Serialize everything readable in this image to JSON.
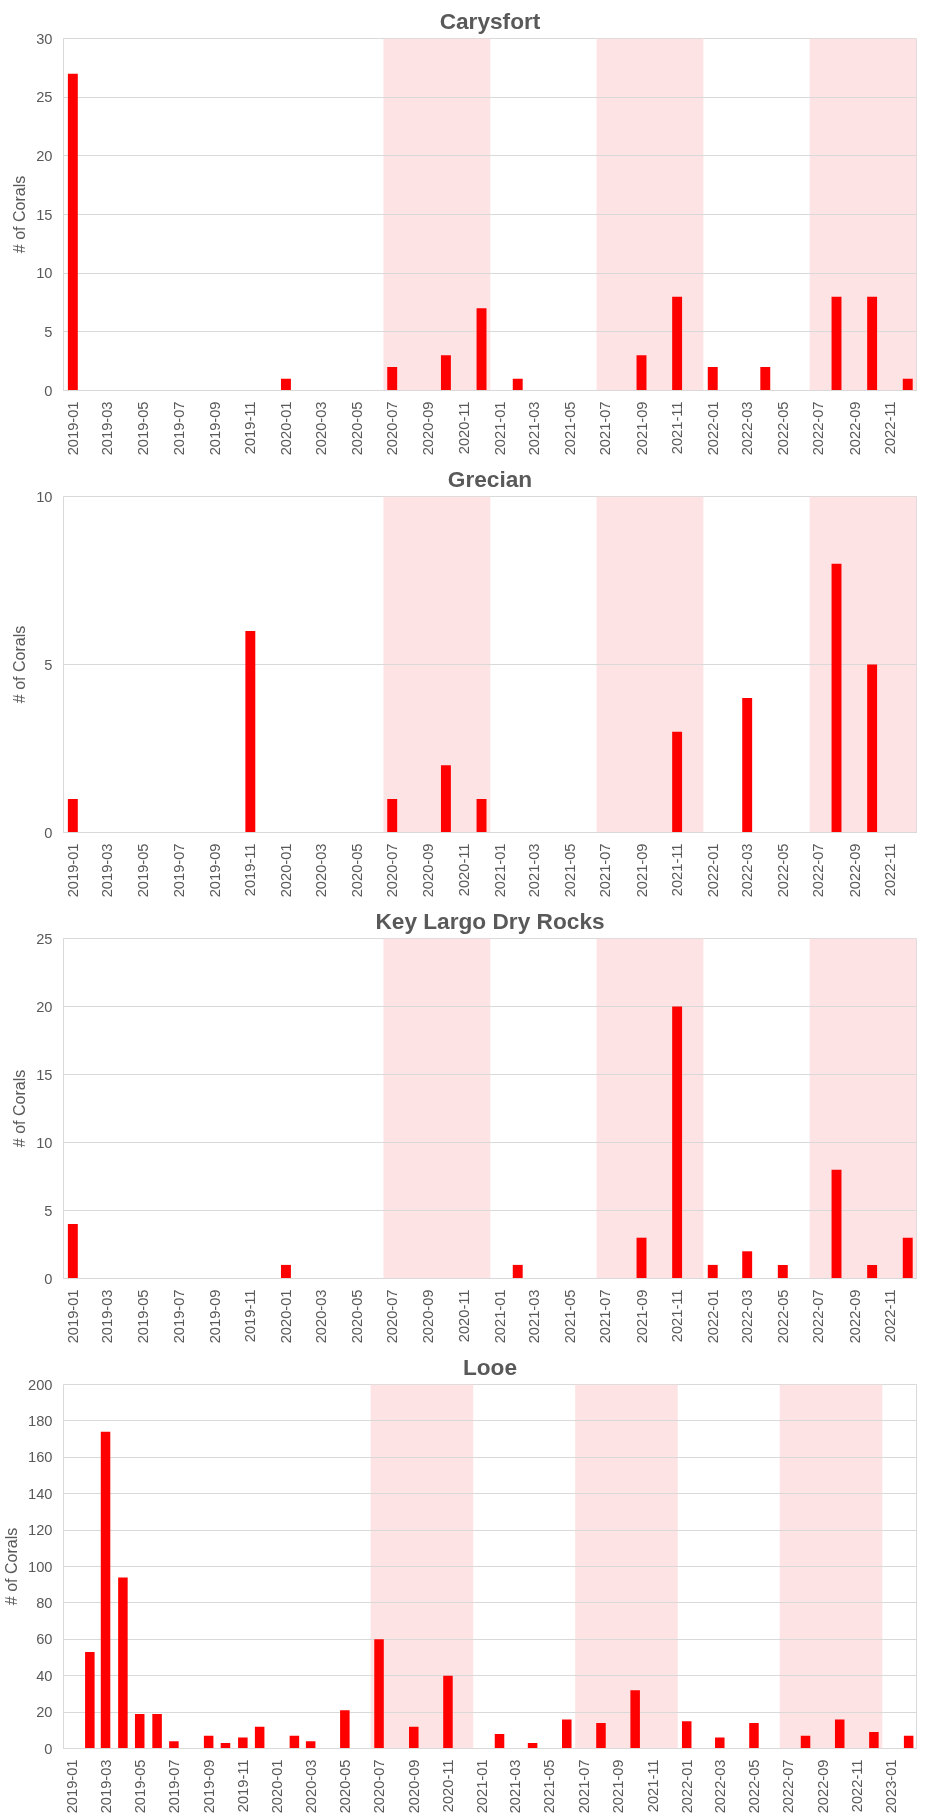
{
  "chart_data": [
    {
      "type": "bar",
      "title": "Carysfort",
      "ylabel": "# of Corals",
      "color": "#ff0000",
      "grid": "y",
      "x": [
        "2019-01",
        "2019-02",
        "2019-03",
        "2019-04",
        "2019-05",
        "2019-06",
        "2019-07",
        "2019-08",
        "2019-09",
        "2019-10",
        "2019-11",
        "2019-12",
        "2020-01",
        "2020-02",
        "2020-03",
        "2020-04",
        "2020-05",
        "2020-06",
        "2020-07",
        "2020-08",
        "2020-09",
        "2020-10",
        "2020-11",
        "2020-12",
        "2021-01",
        "2021-02",
        "2021-03",
        "2021-04",
        "2021-05",
        "2021-06",
        "2021-07",
        "2021-08",
        "2021-09",
        "2021-10",
        "2021-11",
        "2021-12",
        "2022-01",
        "2022-02",
        "2022-03",
        "2022-04",
        "2022-05",
        "2022-06",
        "2022-07",
        "2022-08",
        "2022-09",
        "2022-10",
        "2022-11",
        "2022-12"
      ],
      "values": [
        27,
        0,
        0,
        0,
        0,
        0,
        0,
        0,
        0,
        0,
        0,
        0,
        1,
        0,
        0,
        0,
        0,
        0,
        2,
        0,
        0,
        3,
        0,
        7,
        0,
        1,
        0,
        0,
        0,
        0,
        0,
        0,
        3,
        0,
        8,
        0,
        2,
        0,
        0,
        2,
        0,
        0,
        0,
        8,
        0,
        8,
        0,
        1
      ],
      "xlim": [
        "2018-12-16",
        "2022-12-16"
      ],
      "xticks": [
        "2019-01",
        "2019-03",
        "2019-05",
        "2019-07",
        "2019-09",
        "2019-11",
        "2020-01",
        "2020-03",
        "2020-05",
        "2020-07",
        "2020-09",
        "2020-11",
        "2021-01",
        "2021-03",
        "2021-05",
        "2021-07",
        "2021-09",
        "2021-11",
        "2022-01",
        "2022-03",
        "2022-05",
        "2022-07",
        "2022-09",
        "2022-11"
      ],
      "ylim": [
        0,
        30
      ],
      "yticks": [
        0,
        5,
        10,
        15,
        20,
        25,
        30
      ],
      "bands": [
        {
          "axis": "x",
          "from": "2020-06-16",
          "to": "2020-12-16",
          "color": "#fde3e4"
        },
        {
          "axis": "x",
          "from": "2021-06-16",
          "to": "2021-12-16",
          "color": "#fde3e4"
        },
        {
          "axis": "x",
          "from": "2022-06-16",
          "to": "2022-12-16",
          "color": "#fde3e4"
        }
      ]
    },
    {
      "type": "bar",
      "title": "Grecian",
      "ylabel": "# of Corals",
      "color": "#ff0000",
      "grid": "y",
      "x": [
        "2019-01",
        "2019-02",
        "2019-03",
        "2019-04",
        "2019-05",
        "2019-06",
        "2019-07",
        "2019-08",
        "2019-09",
        "2019-10",
        "2019-11",
        "2019-12",
        "2020-01",
        "2020-02",
        "2020-03",
        "2020-04",
        "2020-05",
        "2020-06",
        "2020-07",
        "2020-08",
        "2020-09",
        "2020-10",
        "2020-11",
        "2020-12",
        "2021-01",
        "2021-02",
        "2021-03",
        "2021-04",
        "2021-05",
        "2021-06",
        "2021-07",
        "2021-08",
        "2021-09",
        "2021-10",
        "2021-11",
        "2021-12",
        "2022-01",
        "2022-02",
        "2022-03",
        "2022-04",
        "2022-05",
        "2022-06",
        "2022-07",
        "2022-08",
        "2022-09",
        "2022-10",
        "2022-11",
        "2022-12"
      ],
      "values": [
        1,
        0,
        0,
        0,
        0,
        0,
        0,
        0,
        0,
        0,
        6,
        0,
        0,
        0,
        0,
        0,
        0,
        0,
        1,
        0,
        0,
        2,
        0,
        1,
        0,
        0,
        0,
        0,
        0,
        0,
        0,
        0,
        0,
        0,
        3,
        0,
        0,
        0,
        4,
        0,
        0,
        0,
        0,
        8,
        0,
        5,
        0,
        0
      ],
      "xlim": [
        "2018-12-16",
        "2022-12-16"
      ],
      "xticks": [
        "2019-01",
        "2019-03",
        "2019-05",
        "2019-07",
        "2019-09",
        "2019-11",
        "2020-01",
        "2020-03",
        "2020-05",
        "2020-07",
        "2020-09",
        "2020-11",
        "2021-01",
        "2021-03",
        "2021-05",
        "2021-07",
        "2021-09",
        "2021-11",
        "2022-01",
        "2022-03",
        "2022-05",
        "2022-07",
        "2022-09",
        "2022-11"
      ],
      "ylim": [
        0,
        10
      ],
      "yticks": [
        0,
        5,
        10
      ],
      "bands": [
        {
          "axis": "x",
          "from": "2020-06-16",
          "to": "2020-12-16",
          "color": "#fde3e4"
        },
        {
          "axis": "x",
          "from": "2021-06-16",
          "to": "2021-12-16",
          "color": "#fde3e4"
        },
        {
          "axis": "x",
          "from": "2022-06-16",
          "to": "2022-12-16",
          "color": "#fde3e4"
        }
      ]
    },
    {
      "type": "bar",
      "title": "Key Largo Dry Rocks",
      "ylabel": "# of Corals",
      "color": "#ff0000",
      "grid": "y",
      "x": [
        "2019-01",
        "2019-02",
        "2019-03",
        "2019-04",
        "2019-05",
        "2019-06",
        "2019-07",
        "2019-08",
        "2019-09",
        "2019-10",
        "2019-11",
        "2019-12",
        "2020-01",
        "2020-02",
        "2020-03",
        "2020-04",
        "2020-05",
        "2020-06",
        "2020-07",
        "2020-08",
        "2020-09",
        "2020-10",
        "2020-11",
        "2020-12",
        "2021-01",
        "2021-02",
        "2021-03",
        "2021-04",
        "2021-05",
        "2021-06",
        "2021-07",
        "2021-08",
        "2021-09",
        "2021-10",
        "2021-11",
        "2021-12",
        "2022-01",
        "2022-02",
        "2022-03",
        "2022-04",
        "2022-05",
        "2022-06",
        "2022-07",
        "2022-08",
        "2022-09",
        "2022-10",
        "2022-11",
        "2022-12"
      ],
      "values": [
        4,
        0,
        0,
        0,
        0,
        0,
        0,
        0,
        0,
        0,
        0,
        0,
        1,
        0,
        0,
        0,
        0,
        0,
        0,
        0,
        0,
        0,
        0,
        0,
        0,
        1,
        0,
        0,
        0,
        0,
        0,
        0,
        3,
        0,
        20,
        0,
        1,
        0,
        2,
        0,
        1,
        0,
        0,
        8,
        0,
        1,
        0,
        3
      ],
      "xlim": [
        "2018-12-16",
        "2022-12-16"
      ],
      "xticks": [
        "2019-01",
        "2019-03",
        "2019-05",
        "2019-07",
        "2019-09",
        "2019-11",
        "2020-01",
        "2020-03",
        "2020-05",
        "2020-07",
        "2020-09",
        "2020-11",
        "2021-01",
        "2021-03",
        "2021-05",
        "2021-07",
        "2021-09",
        "2021-11",
        "2022-01",
        "2022-03",
        "2022-05",
        "2022-07",
        "2022-09",
        "2022-11"
      ],
      "ylim": [
        0,
        25
      ],
      "yticks": [
        0,
        5,
        10,
        15,
        20,
        25
      ],
      "bands": [
        {
          "axis": "x",
          "from": "2020-06-16",
          "to": "2020-12-16",
          "color": "#fde3e4"
        },
        {
          "axis": "x",
          "from": "2021-06-16",
          "to": "2021-12-16",
          "color": "#fde3e4"
        },
        {
          "axis": "x",
          "from": "2022-06-16",
          "to": "2022-12-16",
          "color": "#fde3e4"
        }
      ]
    },
    {
      "type": "bar",
      "title": "Looe",
      "ylabel": "# of Corals",
      "color": "#ff0000",
      "grid": "y",
      "x": [
        "2019-01",
        "2019-02",
        "2019-03",
        "2019-04",
        "2019-05",
        "2019-06",
        "2019-07",
        "2019-08",
        "2019-09",
        "2019-10",
        "2019-11",
        "2019-12",
        "2020-01",
        "2020-02",
        "2020-03",
        "2020-04",
        "2020-05",
        "2020-06",
        "2020-07",
        "2020-08",
        "2020-09",
        "2020-10",
        "2020-11",
        "2020-12",
        "2021-01",
        "2021-02",
        "2021-03",
        "2021-04",
        "2021-05",
        "2021-06",
        "2021-07",
        "2021-08",
        "2021-09",
        "2021-10",
        "2021-11",
        "2021-12",
        "2022-01",
        "2022-02",
        "2022-03",
        "2022-04",
        "2022-05",
        "2022-06",
        "2022-07",
        "2022-08",
        "2022-09",
        "2022-10",
        "2022-11",
        "2022-12",
        "2023-01",
        "2023-02"
      ],
      "values": [
        0,
        53,
        174,
        94,
        19,
        19,
        4,
        0,
        7,
        3,
        6,
        12,
        0,
        7,
        4,
        0,
        21,
        0,
        60,
        0,
        12,
        0,
        40,
        0,
        0,
        8,
        0,
        3,
        0,
        16,
        0,
        14,
        0,
        32,
        0,
        0,
        15,
        0,
        6,
        0,
        14,
        0,
        0,
        7,
        0,
        16,
        0,
        9,
        0,
        7
      ],
      "xlim": [
        "2018-12-16",
        "2023-02-15"
      ],
      "xticks": [
        "2019-01",
        "2019-03",
        "2019-05",
        "2019-07",
        "2019-09",
        "2019-11",
        "2020-01",
        "2020-03",
        "2020-05",
        "2020-07",
        "2020-09",
        "2020-11",
        "2021-01",
        "2021-03",
        "2021-05",
        "2021-07",
        "2021-09",
        "2021-11",
        "2022-01",
        "2022-03",
        "2022-05",
        "2022-07",
        "2022-09",
        "2022-11",
        "2023-01"
      ],
      "ylim": [
        0,
        200
      ],
      "yticks": [
        0,
        20,
        40,
        60,
        80,
        100,
        120,
        140,
        160,
        180,
        200
      ],
      "bands": [
        {
          "axis": "x",
          "from": "2020-06-16",
          "to": "2020-12-16",
          "color": "#fde3e4"
        },
        {
          "axis": "x",
          "from": "2021-06-16",
          "to": "2021-12-16",
          "color": "#fde3e4"
        },
        {
          "axis": "x",
          "from": "2022-06-16",
          "to": "2022-12-16",
          "color": "#fde3e4"
        }
      ]
    }
  ]
}
